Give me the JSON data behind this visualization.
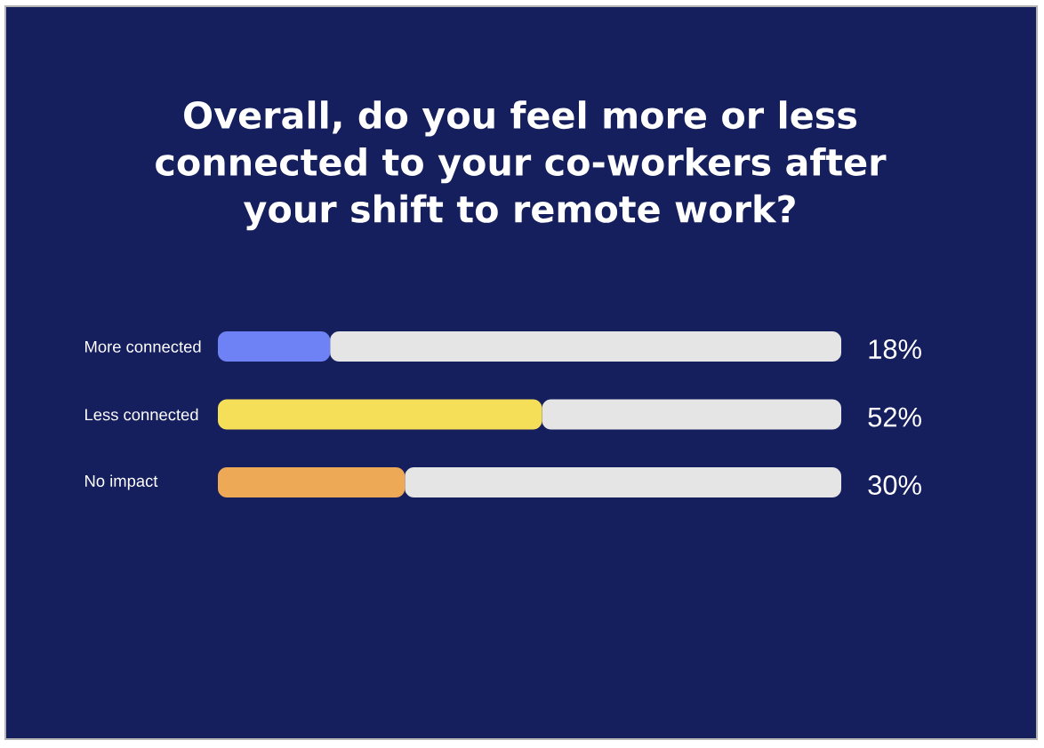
{
  "chart_data": {
    "type": "bar",
    "orientation": "horizontal",
    "stacked": true,
    "title": "Overall, do you feel more or less connected to your co-workers after your shift to remote work?",
    "categories": [
      "More connected",
      "Less connected",
      "No impact"
    ],
    "series": [
      {
        "colors": [
          "#6e82f5",
          "#f5de58",
          "#eea956"
        ],
        "values": [
          18,
          52,
          30
        ],
        "value_labels": [
          "18%",
          "52%",
          "30%"
        ]
      },
      {
        "color": "#e5e5e5",
        "values": [
          82,
          48,
          70
        ]
      }
    ],
    "xlim": [
      0,
      100
    ],
    "tick_labels": "y"
  }
}
